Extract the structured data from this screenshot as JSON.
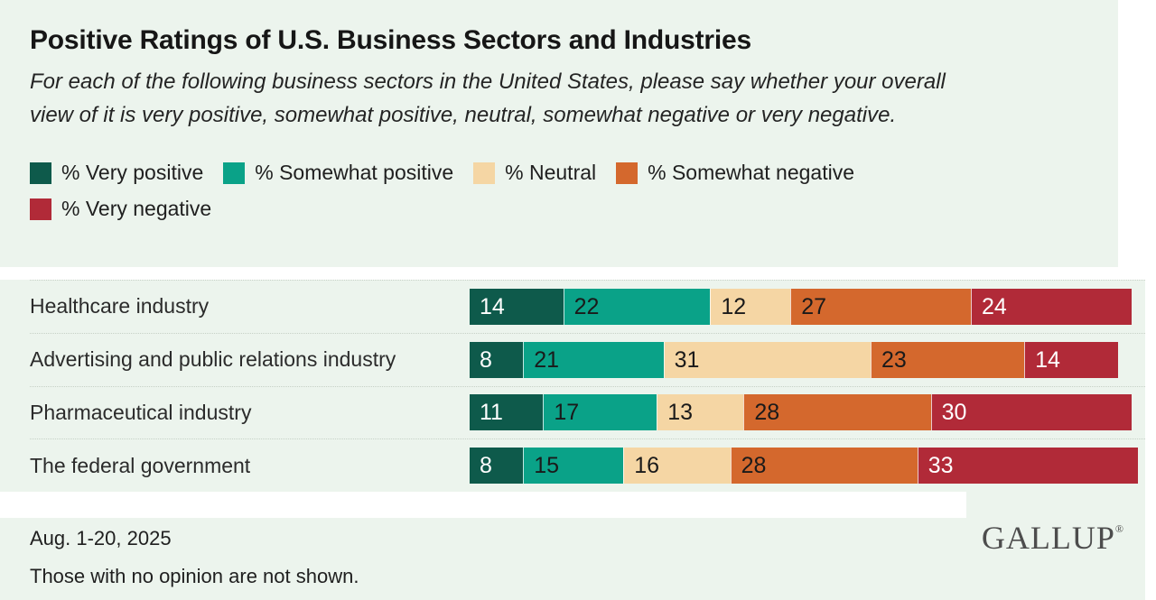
{
  "title": "Positive Ratings of U.S. Business Sectors and Industries",
  "subtitle": "For each of the following business sectors in the United States, please say whether your overall view of it is very positive, somewhat positive, neutral, somewhat negative or very negative.",
  "colors": {
    "background_card": "#ecf4ed",
    "page_background": "#ffffff",
    "separator": "#c6d1c6"
  },
  "chart_data": {
    "type": "bar",
    "stacked": true,
    "orientation": "horizontal",
    "unit": "percent",
    "legend_position": "top",
    "grid": false,
    "categories": [
      "Healthcare industry",
      "Advertising and public relations industry",
      "Pharmaceutical industry",
      "The federal government"
    ],
    "series": [
      {
        "name": "% Very positive",
        "color": "#0e5a4b",
        "text_color": "#ffffff",
        "values": [
          14,
          8,
          11,
          8
        ]
      },
      {
        "name": "% Somewhat positive",
        "color": "#0aa288",
        "text_color": "#1a1a1a",
        "values": [
          22,
          21,
          17,
          15
        ]
      },
      {
        "name": "% Neutral",
        "color": "#f5d6a4",
        "text_color": "#1a1a1a",
        "values": [
          12,
          31,
          13,
          16
        ]
      },
      {
        "name": "% Somewhat negative",
        "color": "#d4682d",
        "text_color": "#1a1a1a",
        "values": [
          27,
          23,
          28,
          28
        ]
      },
      {
        "name": "% Very negative",
        "color": "#b12a38",
        "text_color": "#ffffff",
        "values": [
          24,
          14,
          30,
          33
        ]
      }
    ]
  },
  "footer": {
    "date": "Aug. 1-20, 2025",
    "note": "Those with no opinion are not shown.",
    "logo": "GALLUP",
    "logo_reg": "®"
  }
}
